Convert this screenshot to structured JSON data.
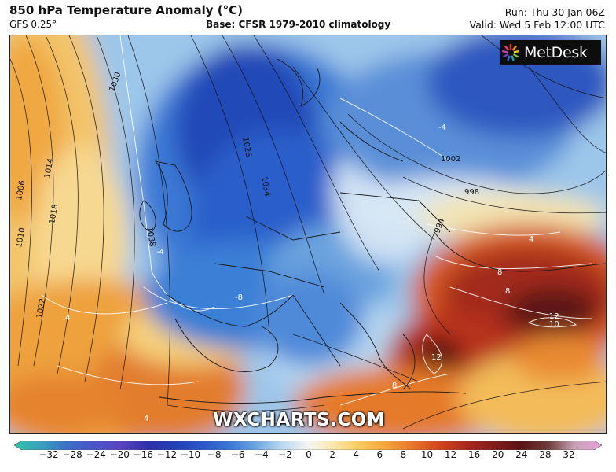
{
  "header": {
    "title": "850 hPa Temperature Anomaly (°C)",
    "model": "GFS 0.25°",
    "base": "Base: CFSR 1979-2010 climatology",
    "run": "Run: Thu 30 Jan 06Z",
    "valid": "Valid: Wed 5 Feb 12:00 UTC"
  },
  "logo": {
    "text": "MetDesk",
    "icon": "starburst-logo-icon"
  },
  "watermark": "WXCHARTS.COM",
  "colorbar": {
    "ticks": [
      "−32",
      "−28",
      "−24",
      "−20",
      "−16",
      "−12",
      "−10",
      "−8",
      "−6",
      "−4",
      "−2",
      "0",
      "2",
      "4",
      "6",
      "8",
      "10",
      "12",
      "16",
      "20",
      "24",
      "28",
      "32"
    ],
    "colors": [
      "#2ec4a6",
      "#3a9fbf",
      "#3b6fc4",
      "#4a54c8",
      "#5a44c0",
      "#2f2fa8",
      "#2440b5",
      "#2a55c8",
      "#3a75d2",
      "#6aa3de",
      "#b9d8f0",
      "#f5f5f5",
      "#fbe7a8",
      "#f8c85a",
      "#f2a23a",
      "#e8702a",
      "#cf4220",
      "#a8281c",
      "#801c1c",
      "#5a1414",
      "#6e3b3b",
      "#c8a4b8",
      "#e8a0d8"
    ]
  },
  "isobar_labels": [
    "1030",
    "1026",
    "1022",
    "1018",
    "1014",
    "1010",
    "1006",
    "1002",
    "998",
    "994",
    "1038",
    "1034"
  ],
  "anomaly_labels": [
    "-8",
    "-4",
    "-4",
    "4",
    "4",
    "4",
    "8",
    "8",
    "8",
    "12",
    "10",
    "12"
  ]
}
